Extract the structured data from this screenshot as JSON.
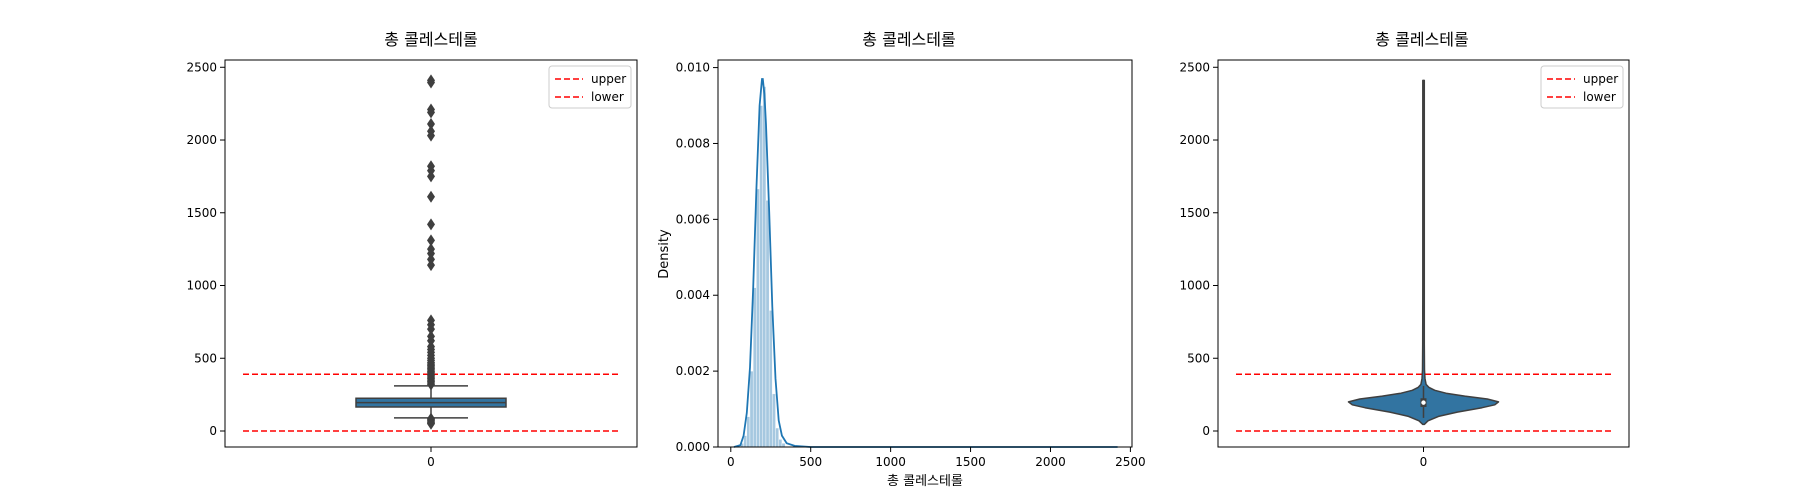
{
  "colors": {
    "box": "#3274a1",
    "kde": "#1f77b4",
    "hist": "#a6c8e0",
    "dark": "#3f3f3f",
    "reference": "#ff0000"
  },
  "chart_data": [
    {
      "type": "box",
      "title": "총 콜레스테롤",
      "xlabel": "",
      "ylabel": "",
      "categories": [
        "0"
      ],
      "ylim": [
        -110,
        2550
      ],
      "yticks": [
        0,
        500,
        1000,
        1500,
        2000,
        2500
      ],
      "box": {
        "q1": 165,
        "median": 195,
        "q3": 225,
        "whisker_low": 90,
        "whisker_high": 310
      },
      "outliers": [
        2410,
        2395,
        2210,
        2190,
        2110,
        2060,
        2030,
        1820,
        1790,
        1750,
        1610,
        1420,
        1310,
        1250,
        1220,
        1180,
        1140,
        760,
        730,
        700,
        650,
        620,
        580,
        560,
        540,
        520,
        500,
        485,
        470,
        460,
        450,
        440,
        430,
        420,
        410,
        400,
        390,
        380,
        370,
        360,
        350,
        340,
        330,
        320,
        85,
        78,
        70,
        62,
        55,
        50
      ],
      "reference_lines": [
        {
          "name": "upper",
          "value": 390
        },
        {
          "name": "lower",
          "value": 0
        }
      ],
      "legend": {
        "entries": [
          "upper",
          "lower"
        ],
        "position": "top-right"
      },
      "grid": false
    },
    {
      "type": "histogram",
      "title": "총 콜레스테롤",
      "xlabel": "총 콜레스테롤",
      "ylabel": "Density",
      "xlim": [
        -80,
        2510
      ],
      "ylim": [
        0,
        0.0102
      ],
      "xticks": [
        0,
        500,
        1000,
        1500,
        2000,
        2500
      ],
      "yticks": [
        "0.000",
        "0.002",
        "0.004",
        "0.006",
        "0.008",
        "0.010"
      ],
      "bins": [
        {
          "x0": 60,
          "x1": 80,
          "density": 0.0001
        },
        {
          "x0": 80,
          "x1": 100,
          "density": 0.0003
        },
        {
          "x0": 100,
          "x1": 120,
          "density": 0.0008
        },
        {
          "x0": 120,
          "x1": 140,
          "density": 0.002
        },
        {
          "x0": 140,
          "x1": 160,
          "density": 0.0042
        },
        {
          "x0": 160,
          "x1": 180,
          "density": 0.0068
        },
        {
          "x0": 180,
          "x1": 200,
          "density": 0.009
        },
        {
          "x0": 200,
          "x1": 220,
          "density": 0.0095
        },
        {
          "x0": 220,
          "x1": 240,
          "density": 0.0065
        },
        {
          "x0": 240,
          "x1": 260,
          "density": 0.0036
        },
        {
          "x0": 260,
          "x1": 280,
          "density": 0.0014
        },
        {
          "x0": 280,
          "x1": 300,
          "density": 0.0005
        },
        {
          "x0": 300,
          "x1": 320,
          "density": 0.0002
        },
        {
          "x0": 320,
          "x1": 340,
          "density": 0.0001
        }
      ],
      "kde": {
        "x": [
          20,
          60,
          80,
          100,
          120,
          140,
          160,
          180,
          195,
          200,
          210,
          220,
          240,
          260,
          280,
          300,
          320,
          350,
          400,
          500,
          1000,
          1500,
          2000,
          2420
        ],
        "y": [
          0,
          5e-05,
          0.0003,
          0.0009,
          0.0021,
          0.0042,
          0.0068,
          0.009,
          0.0097,
          0.0097,
          0.0093,
          0.0085,
          0.0062,
          0.0037,
          0.0018,
          0.0007,
          0.0003,
          0.0001,
          3e-05,
          0,
          0,
          0,
          0,
          0
        ]
      },
      "grid": false
    },
    {
      "type": "violin",
      "title": "총 콜레스테롤",
      "xlabel": "",
      "ylabel": "",
      "categories": [
        "0"
      ],
      "ylim": [
        -110,
        2550
      ],
      "yticks": [
        0,
        500,
        1000,
        1500,
        2000,
        2500
      ],
      "violin": {
        "y": [
          45,
          70,
          100,
          130,
          160,
          180,
          200,
          220,
          240,
          260,
          280,
          300,
          320,
          360,
          420,
          600,
          1000,
          1500,
          2000,
          2410
        ],
        "halfwidth_ratio": [
          0.01,
          0.06,
          0.2,
          0.45,
          0.78,
          0.95,
          1.0,
          0.85,
          0.55,
          0.3,
          0.15,
          0.07,
          0.035,
          0.02,
          0.014,
          0.011,
          0.01,
          0.01,
          0.01,
          0.01
        ]
      },
      "inner_box": {
        "q1": 165,
        "median": 195,
        "q3": 225,
        "whisker_low": 90,
        "whisker_high": 310
      },
      "reference_lines": [
        {
          "name": "upper",
          "value": 390
        },
        {
          "name": "lower",
          "value": 0
        }
      ],
      "legend": {
        "entries": [
          "upper",
          "lower"
        ],
        "position": "top-right"
      },
      "grid": false
    }
  ]
}
